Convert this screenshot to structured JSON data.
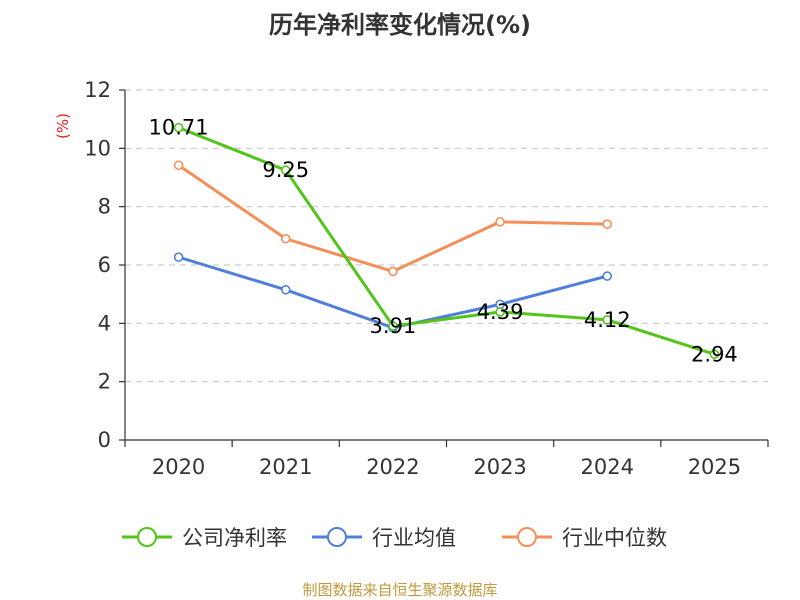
{
  "chart_data": {
    "type": "line",
    "title": "历年净利率变化情况(%)",
    "ylabel": "(%)",
    "xlabel": "",
    "ylim": [
      0,
      12
    ],
    "yticks": [
      0,
      2,
      4,
      6,
      8,
      10,
      12
    ],
    "categories": [
      "2020",
      "2021",
      "2022",
      "2023",
      "2024",
      "2025"
    ],
    "grid": true,
    "legend_position": "bottom",
    "series": [
      {
        "name": "公司净利率",
        "color": "#52c41a",
        "values": [
          10.71,
          9.25,
          3.91,
          4.39,
          4.12,
          2.94
        ],
        "labels": [
          "10.71",
          "9.25",
          "3.91",
          "4.39",
          "4.12",
          "2.94"
        ],
        "show_labels": true
      },
      {
        "name": "行业均值",
        "color": "#4f7fd9",
        "values": [
          6.27,
          5.15,
          3.85,
          4.65,
          5.62,
          null
        ],
        "show_labels": false
      },
      {
        "name": "行业中位数",
        "color": "#f58f5a",
        "values": [
          9.42,
          6.9,
          5.78,
          7.48,
          7.4,
          null
        ],
        "show_labels": false
      }
    ]
  },
  "source": {
    "text": "制图数据来自恒生聚源数据库",
    "color": "#c09a3c"
  },
  "unit_color": "#e02020",
  "grid_color": "#cccccc",
  "axis_color": "#333333"
}
